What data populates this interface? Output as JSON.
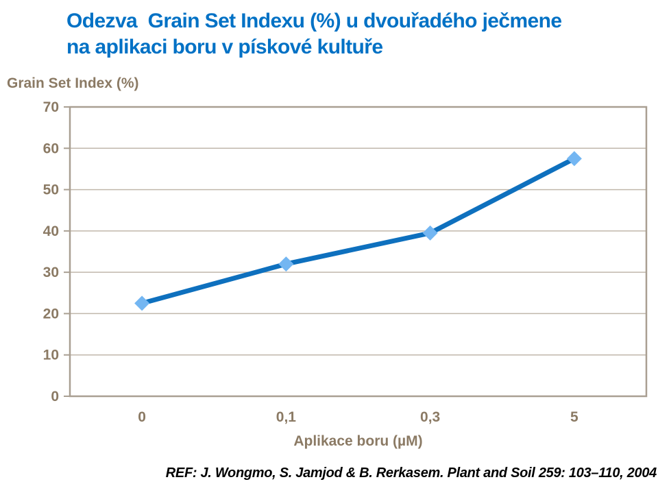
{
  "header": {
    "title_line1": "Odezva  Grain Set Indexu (%) u dvouřadého ječmene",
    "title_line2": "na aplikaci boru v pískové kultuře",
    "title_color": "#0071C5"
  },
  "chart_data": {
    "type": "line",
    "categories": [
      "0",
      "0,1",
      "0,3",
      "5"
    ],
    "values": [
      22.5,
      32,
      39.5,
      57.5
    ],
    "series": [
      {
        "name": "Grain Set Index (%)",
        "values": [
          22.5,
          32,
          39.5,
          57.5
        ]
      }
    ],
    "title": "",
    "xlabel": "Aplikace boru (µM)",
    "ylabel": "Grain Set Index (%)",
    "ylim": [
      0,
      70
    ],
    "ytick_step": 10,
    "ytick_labels": [
      "0",
      "10",
      "20",
      "30",
      "40",
      "50",
      "60",
      "70"
    ],
    "grid": "horizontal",
    "legend": "none",
    "line_color": "#0E70BE",
    "marker": "diamond",
    "marker_color": "#73B6F2",
    "axis_color": "#A99F92",
    "grid_color": "#C0B7AB",
    "tick_label_color": "#8B7A64"
  },
  "footer": {
    "reference": "REF: J. Wongmo, S. Jamjod & B. Rerkasem. Plant and Soil 259: 103–110, 2004"
  }
}
